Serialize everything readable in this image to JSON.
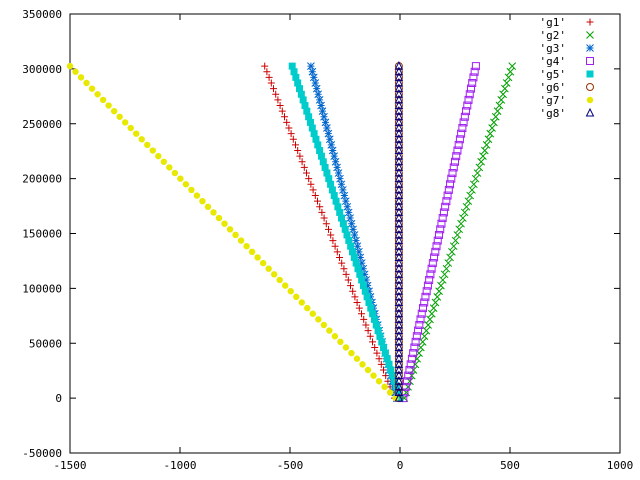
{
  "chart_data": {
    "type": "scatter",
    "title": "",
    "xlabel": "",
    "ylabel": "",
    "xlim": [
      -1500,
      1000
    ],
    "ylim": [
      -50000,
      350000
    ],
    "x_ticks": [
      -1500,
      -1000,
      -500,
      0,
      500,
      1000
    ],
    "y_ticks": [
      -50000,
      0,
      50000,
      100000,
      150000,
      200000,
      250000,
      300000,
      350000
    ],
    "grid": false,
    "legend_position": "top-right",
    "series": [
      {
        "name": "'g1'",
        "color": "#cc0000",
        "marker": "plus",
        "line": {
          "x0": -25,
          "y0": 0,
          "x1": -615,
          "y1": 302500
        },
        "points": 60
      },
      {
        "name": "'g2'",
        "color": "#00a000",
        "marker": "cross",
        "line": {
          "x0": 20,
          "y0": 0,
          "x1": 510,
          "y1": 302500
        },
        "points": 60
      },
      {
        "name": "'g3'",
        "color": "#0066cc",
        "marker": "asterisk",
        "line": {
          "x0": -15,
          "y0": 0,
          "x1": -405,
          "y1": 302500
        },
        "points": 60
      },
      {
        "name": "'g4'",
        "color": "#a020f0",
        "marker": "open-square",
        "line": {
          "x0": 15,
          "y0": 0,
          "x1": 345,
          "y1": 302500
        },
        "points": 60
      },
      {
        "name": "'g5'",
        "color": "#00cccc",
        "marker": "filled-square",
        "line": {
          "x0": 0,
          "y0": 0,
          "x1": -490,
          "y1": 302500
        },
        "points": 60
      },
      {
        "name": "'g6'",
        "color": "#993300",
        "marker": "open-circle",
        "line": {
          "x0": -5,
          "y0": 0,
          "x1": -5,
          "y1": 302500
        },
        "points": 60
      },
      {
        "name": "'g7'",
        "color": "#e8e800",
        "marker": "filled-circle",
        "line": {
          "x0": -20,
          "y0": 0,
          "x1": -1500,
          "y1": 302500
        },
        "points": 60
      },
      {
        "name": "'g8'",
        "color": "#000080",
        "marker": "open-triangle",
        "line": {
          "x0": -5,
          "y0": 0,
          "x1": -5,
          "y1": 302500
        },
        "points": 60
      }
    ]
  }
}
